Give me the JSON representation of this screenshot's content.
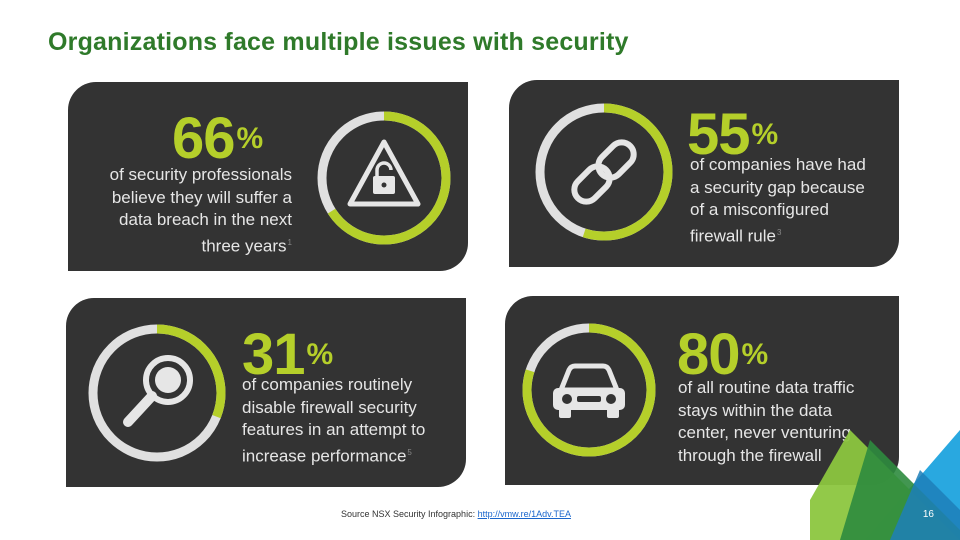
{
  "slide": {
    "title": "Organizations face multiple issues with security",
    "page_number": "16"
  },
  "colors": {
    "title_green": "#2f7a2a",
    "tile_bg": "#333333",
    "accent_lime": "#b5cf2a",
    "ring_gray": "#e0e0e0",
    "corner_green": "#8cc63f",
    "corner_blue": "#29a8e0"
  },
  "stats": [
    {
      "percent": "66",
      "symbol": "%",
      "fraction": 0.66,
      "line1": "of security professionals",
      "line2": "believe they will suffer a",
      "line3": "data breach in the next",
      "line4": "three years",
      "note": "1",
      "icon": "warning-lock-icon"
    },
    {
      "percent": "55",
      "symbol": "%",
      "fraction": 0.55,
      "line1": "of companies have had",
      "line2": "a security gap because",
      "line3": "of a misconfigured",
      "line4": "firewall rule",
      "note": "3",
      "icon": "chain-link-icon"
    },
    {
      "percent": "31",
      "symbol": "%",
      "fraction": 0.31,
      "line1": "of companies routinely",
      "line2": "disable firewall security",
      "line3": "features in an attempt to",
      "line4": "increase performance",
      "note": "5",
      "icon": "magnifier-icon"
    },
    {
      "percent": "80",
      "symbol": "%",
      "fraction": 0.8,
      "line1": "of all routine data traffic",
      "line2": "stays within the data",
      "line3": "center, never venturing",
      "line4": "through the firewall",
      "note": "",
      "icon": "car-icon"
    }
  ],
  "source": {
    "prefix": "Source NSX Security Infographic: ",
    "link_text": "http://vmw.re/1Adv.TEA"
  }
}
